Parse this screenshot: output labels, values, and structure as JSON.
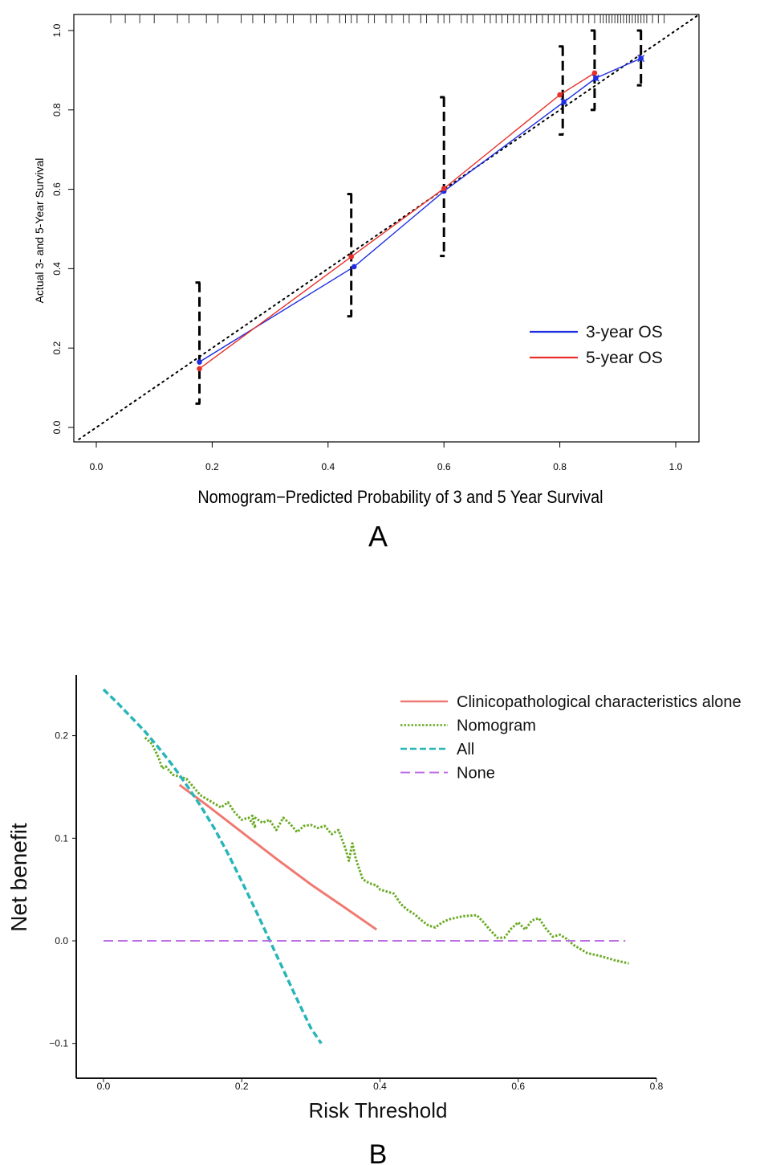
{
  "panel_labels": {
    "a": "A",
    "b": "B"
  },
  "chart_data": [
    {
      "type": "line",
      "panel": "A",
      "title": "",
      "xlabel": "Nomogram−Predicted Probability of 3 and 5 Year Survival",
      "ylabel": "Actual 3- and 5-Year Survival",
      "xlim": [
        0.0,
        1.0
      ],
      "ylim": [
        0.0,
        1.0
      ],
      "x_ticks": [
        "0.0",
        "0.2",
        "0.4",
        "0.6",
        "0.8",
        "1.0"
      ],
      "y_ticks": [
        "0.0",
        "0.2",
        "0.4",
        "0.6",
        "0.8",
        "1.0"
      ],
      "grid": false,
      "legend_position": "bottom-right",
      "reference_line": {
        "from": [
          -0.03,
          -0.03
        ],
        "to": [
          1.04,
          1.04
        ],
        "style": "dotted",
        "color": "#000000"
      },
      "series": [
        {
          "name": "3-year OS",
          "color": "#1f2fe0",
          "marker": "dot-and-x",
          "x": [
            0.178,
            0.445,
            0.6,
            0.807,
            0.862,
            0.94
          ],
          "y": [
            0.165,
            0.405,
            0.595,
            0.82,
            0.88,
            0.93
          ]
        },
        {
          "name": "5-year OS",
          "color": "#e8302a",
          "marker": "dot",
          "x": [
            0.178,
            0.44,
            0.6,
            0.8,
            0.86
          ],
          "y": [
            0.148,
            0.43,
            0.602,
            0.838,
            0.893
          ]
        }
      ],
      "error_bars": [
        {
          "x": 0.178,
          "low": 0.06,
          "high": 0.365
        },
        {
          "x": 0.44,
          "low": 0.28,
          "high": 0.588
        },
        {
          "x": 0.6,
          "low": 0.432,
          "high": 0.832
        },
        {
          "x": 0.805,
          "low": 0.738,
          "high": 0.96
        },
        {
          "x": 0.86,
          "low": 0.8,
          "high": 1.0
        },
        {
          "x": 0.94,
          "low": 0.862,
          "high": 1.0
        }
      ],
      "rug_x": [
        0.025,
        0.05,
        0.075,
        0.1,
        0.14,
        0.16,
        0.19,
        0.21,
        0.25,
        0.27,
        0.29,
        0.31,
        0.33,
        0.34,
        0.37,
        0.38,
        0.4,
        0.42,
        0.43,
        0.44,
        0.45,
        0.47,
        0.48,
        0.5,
        0.51,
        0.53,
        0.54,
        0.56,
        0.57,
        0.59,
        0.6,
        0.61,
        0.63,
        0.64,
        0.65,
        0.67,
        0.68,
        0.69,
        0.7,
        0.71,
        0.72,
        0.73,
        0.74,
        0.75,
        0.76,
        0.77,
        0.78,
        0.79,
        0.8,
        0.81,
        0.82,
        0.83,
        0.84,
        0.85,
        0.86,
        0.87,
        0.875,
        0.88,
        0.885,
        0.89,
        0.895,
        0.9,
        0.905,
        0.91,
        0.915,
        0.92,
        0.925,
        0.93,
        0.935,
        0.94,
        0.945,
        0.95,
        0.96,
        0.97,
        0.98
      ]
    },
    {
      "type": "line",
      "panel": "B",
      "title": "",
      "xlabel": "Risk Threshold",
      "ylabel": "Net benefit",
      "xlim": [
        0.0,
        0.8
      ],
      "ylim": [
        -0.1,
        0.25
      ],
      "x_ticks": [
        "0.0",
        "0.2",
        "0.4",
        "0.6",
        "0.8"
      ],
      "y_ticks": [
        "−0.1",
        "0.0",
        "0.1",
        "0.2"
      ],
      "grid": false,
      "legend_position": "top-right",
      "series": [
        {
          "name": "Clinicopathological characteristics alone",
          "color": "#f07a72",
          "style": "solid",
          "x": [
            0.11,
            0.15,
            0.2,
            0.25,
            0.3,
            0.35,
            0.395
          ],
          "y": [
            0.152,
            0.132,
            0.106,
            0.08,
            0.055,
            0.032,
            0.011
          ]
        },
        {
          "name": "Nomogram",
          "color": "#6aaa24",
          "style": "dotted",
          "x": [
            0.06,
            0.07,
            0.075,
            0.08,
            0.085,
            0.09,
            0.1,
            0.12,
            0.14,
            0.15,
            0.17,
            0.18,
            0.19,
            0.2,
            0.21,
            0.22,
            0.215,
            0.23,
            0.24,
            0.25,
            0.26,
            0.27,
            0.28,
            0.29,
            0.3,
            0.31,
            0.32,
            0.33,
            0.34,
            0.35,
            0.355,
            0.36,
            0.365,
            0.37,
            0.375,
            0.38,
            0.385,
            0.39,
            0.395,
            0.4,
            0.41,
            0.42,
            0.43,
            0.44,
            0.45,
            0.46,
            0.47,
            0.48,
            0.49,
            0.5,
            0.52,
            0.54,
            0.55,
            0.56,
            0.57,
            0.58,
            0.59,
            0.6,
            0.61,
            0.62,
            0.63,
            0.64,
            0.65,
            0.66,
            0.67,
            0.68,
            0.69,
            0.7,
            0.72,
            0.74,
            0.76
          ],
          "y": [
            0.198,
            0.192,
            0.185,
            0.178,
            0.168,
            0.17,
            0.162,
            0.158,
            0.142,
            0.138,
            0.13,
            0.135,
            0.125,
            0.118,
            0.12,
            0.11,
            0.122,
            0.115,
            0.118,
            0.108,
            0.12,
            0.114,
            0.106,
            0.112,
            0.113,
            0.11,
            0.112,
            0.104,
            0.108,
            0.09,
            0.078,
            0.095,
            0.08,
            0.07,
            0.06,
            0.058,
            0.056,
            0.055,
            0.054,
            0.05,
            0.048,
            0.046,
            0.036,
            0.03,
            0.026,
            0.02,
            0.015,
            0.013,
            0.018,
            0.021,
            0.024,
            0.025,
            0.018,
            0.01,
            0.003,
            0.003,
            0.012,
            0.018,
            0.011,
            0.02,
            0.022,
            0.012,
            0.004,
            0.006,
            0.002,
            -0.004,
            -0.008,
            -0.012,
            -0.015,
            -0.019,
            -0.022
          ]
        },
        {
          "name": "All",
          "color": "#28b5b8",
          "style": "dashed",
          "x": [
            0.0,
            0.02,
            0.04,
            0.06,
            0.08,
            0.1,
            0.12,
            0.14,
            0.16,
            0.18,
            0.2,
            0.22,
            0.24,
            0.26,
            0.28,
            0.3,
            0.315
          ],
          "y": [
            0.245,
            0.232,
            0.218,
            0.204,
            0.188,
            0.171,
            0.152,
            0.132,
            0.11,
            0.085,
            0.058,
            0.03,
            0.001,
            -0.028,
            -0.057,
            -0.085,
            -0.1
          ]
        },
        {
          "name": "None",
          "color": "#bd6fe6",
          "style": "long-dashed",
          "x": [
            0.0,
            0.755
          ],
          "y": [
            0.0,
            0.0
          ]
        }
      ]
    }
  ]
}
